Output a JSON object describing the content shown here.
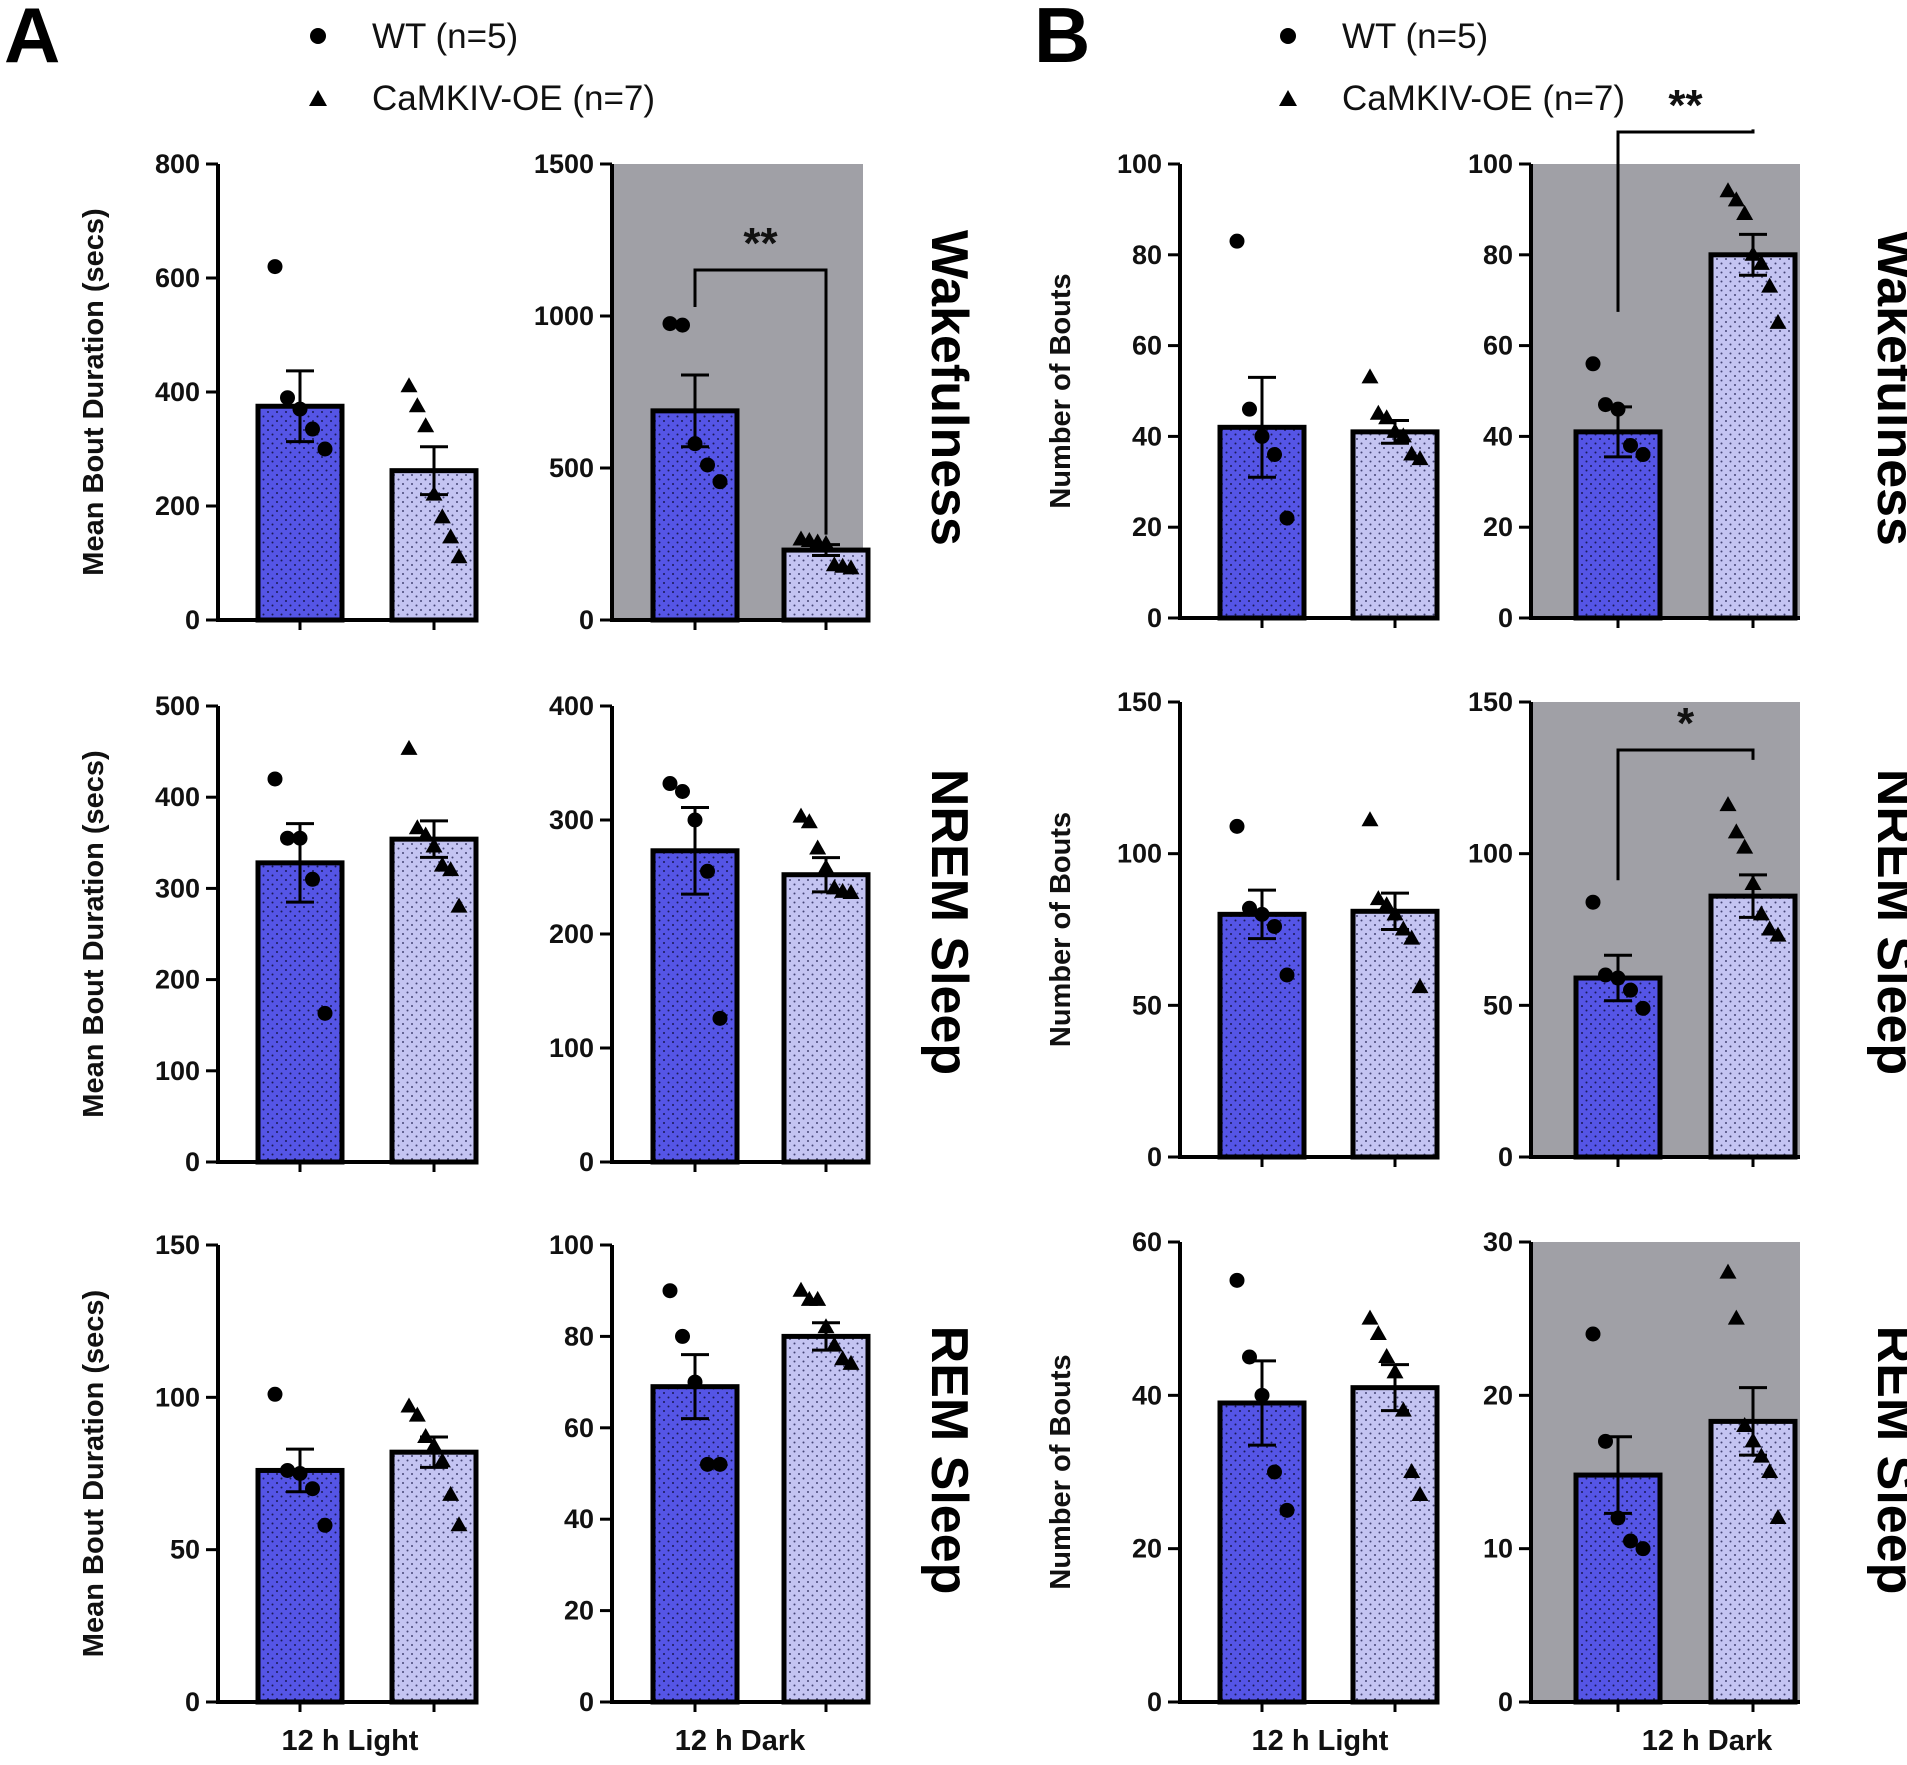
{
  "colors": {
    "wt": "#5555e6",
    "oe": "#c4c4f2",
    "dark_bg": "#a0a0a6",
    "ink": "#000000"
  },
  "panels": {
    "A": "A",
    "B": "B"
  },
  "legend": {
    "wt_label": "WT (n=5)",
    "oe_label": "CaMKIV-OE (n=7)"
  },
  "rows": {
    "wake": "Wakefulness",
    "nrem": "NREM Sleep",
    "rem": "REM Sleep"
  },
  "xcats": {
    "light": "12 h Light",
    "dark": "12 h Dark"
  },
  "chart_data": [
    {
      "id": "A-wake-light",
      "type": "bar",
      "panel": "A",
      "row": "Wakefulness",
      "condition": "12 h Light",
      "ylabel": "Mean Bout Duration (secs)",
      "ylim": [
        0,
        800
      ],
      "yticks": [
        0,
        200,
        400,
        600,
        800
      ],
      "dark": false,
      "series": [
        {
          "name": "WT (n=5)",
          "mean": 375,
          "sem": 62,
          "points": [
            620,
            390,
            370,
            335,
            300
          ]
        },
        {
          "name": "CaMKIV-OE (n=7)",
          "mean": 262,
          "sem": 42,
          "points": [
            410,
            375,
            340,
            220,
            180,
            145,
            110
          ]
        }
      ],
      "significance": null
    },
    {
      "id": "A-wake-dark",
      "type": "bar",
      "panel": "A",
      "row": "Wakefulness",
      "condition": "12 h Dark",
      "ylabel": "",
      "ylim": [
        0,
        1500
      ],
      "yticks": [
        0,
        500,
        1000,
        1500
      ],
      "dark": true,
      "series": [
        {
          "name": "WT (n=5)",
          "mean": 688,
          "sem": 118,
          "points": [
            975,
            970,
            580,
            510,
            455
          ]
        },
        {
          "name": "CaMKIV-OE (n=7)",
          "mean": 230,
          "sem": 18,
          "points": [
            265,
            260,
            255,
            250,
            180,
            175,
            170
          ]
        }
      ],
      "significance": "**"
    },
    {
      "id": "A-nrem-light",
      "type": "bar",
      "panel": "A",
      "row": "NREM Sleep",
      "condition": "12 h Light",
      "ylabel": "Mean Bout Duration (secs)",
      "ylim": [
        0,
        500
      ],
      "yticks": [
        0,
        100,
        200,
        300,
        400,
        500
      ],
      "dark": false,
      "series": [
        {
          "name": "WT (n=5)",
          "mean": 328,
          "sem": 43,
          "points": [
            420,
            355,
            355,
            310,
            163
          ]
        },
        {
          "name": "CaMKIV-OE (n=7)",
          "mean": 354,
          "sem": 20,
          "points": [
            453,
            366,
            358,
            346,
            325,
            320,
            280
          ]
        }
      ],
      "significance": null
    },
    {
      "id": "A-nrem-dark",
      "type": "bar",
      "panel": "A",
      "row": "NREM Sleep",
      "condition": "12 h Dark",
      "ylabel": "",
      "ylim": [
        0,
        400
      ],
      "yticks": [
        0,
        100,
        200,
        300,
        400
      ],
      "dark": false,
      "series": [
        {
          "name": "WT (n=5)",
          "mean": 273,
          "sem": 38,
          "points": [
            332,
            325,
            300,
            255,
            126
          ]
        },
        {
          "name": "CaMKIV-OE (n=7)",
          "mean": 252,
          "sem": 15,
          "points": [
            303,
            298,
            275,
            258,
            240,
            237,
            236
          ]
        }
      ],
      "significance": null
    },
    {
      "id": "A-rem-light",
      "type": "bar",
      "panel": "A",
      "row": "REM Sleep",
      "condition": "12 h Light",
      "ylabel": "Mean Bout Duration (secs)",
      "ylim": [
        0,
        150
      ],
      "yticks": [
        0,
        50,
        100,
        150
      ],
      "dark": false,
      "series": [
        {
          "name": "WT (n=5)",
          "mean": 76,
          "sem": 7,
          "points": [
            101,
            76,
            75,
            70,
            58
          ]
        },
        {
          "name": "CaMKIV-OE (n=7)",
          "mean": 82,
          "sem": 5,
          "points": [
            97,
            94,
            87,
            84,
            79,
            68,
            58
          ]
        }
      ],
      "significance": null
    },
    {
      "id": "A-rem-dark",
      "type": "bar",
      "panel": "A",
      "row": "REM Sleep",
      "condition": "12 h Dark",
      "ylabel": "",
      "ylim": [
        0,
        100
      ],
      "yticks": [
        0,
        20,
        40,
        60,
        80,
        100
      ],
      "dark": false,
      "series": [
        {
          "name": "WT (n=5)",
          "mean": 69,
          "sem": 7,
          "points": [
            90,
            80,
            70,
            52,
            52
          ]
        },
        {
          "name": "CaMKIV-OE (n=7)",
          "mean": 80,
          "sem": 3,
          "points": [
            90,
            88,
            88,
            82,
            78,
            75,
            74
          ]
        }
      ],
      "significance": null
    },
    {
      "id": "B-wake-light",
      "type": "bar",
      "panel": "B",
      "row": "Wakefulness",
      "condition": "12 h Light",
      "ylabel": "Number of Bouts",
      "ylim": [
        0,
        100
      ],
      "yticks": [
        0,
        20,
        40,
        60,
        80,
        100
      ],
      "dark": false,
      "series": [
        {
          "name": "WT (n=5)",
          "mean": 42,
          "sem": 11,
          "points": [
            83,
            46,
            40,
            36,
            22
          ]
        },
        {
          "name": "CaMKIV-OE (n=7)",
          "mean": 41,
          "sem": 2.5,
          "points": [
            53,
            45,
            44,
            41,
            40,
            36,
            35
          ]
        }
      ],
      "significance": null
    },
    {
      "id": "B-wake-dark",
      "type": "bar",
      "panel": "B",
      "row": "Wakefulness",
      "condition": "12 h Dark",
      "ylabel": "",
      "ylim": [
        0,
        100
      ],
      "yticks": [
        0,
        20,
        40,
        60,
        80,
        100
      ],
      "dark": true,
      "series": [
        {
          "name": "WT (n=5)",
          "mean": 41,
          "sem": 5.5,
          "points": [
            56,
            47,
            46,
            38,
            36
          ]
        },
        {
          "name": "CaMKIV-OE (n=7)",
          "mean": 80,
          "sem": 4.5,
          "points": [
            94,
            92,
            89,
            80,
            78,
            73,
            65
          ]
        }
      ],
      "significance": "**"
    },
    {
      "id": "B-nrem-light",
      "type": "bar",
      "panel": "B",
      "row": "NREM Sleep",
      "condition": "12 h Light",
      "ylabel": "Number of Bouts",
      "ylim": [
        0,
        150
      ],
      "yticks": [
        0,
        50,
        100,
        150
      ],
      "dark": false,
      "series": [
        {
          "name": "WT (n=5)",
          "mean": 80,
          "sem": 8,
          "points": [
            109,
            82,
            80,
            76,
            60
          ]
        },
        {
          "name": "CaMKIV-OE (n=7)",
          "mean": 81,
          "sem": 6,
          "points": [
            111,
            85,
            83,
            80,
            75,
            72,
            56
          ]
        }
      ],
      "significance": null
    },
    {
      "id": "B-nrem-dark",
      "type": "bar",
      "panel": "B",
      "row": "NREM Sleep",
      "condition": "12 h Dark",
      "ylabel": "",
      "ylim": [
        0,
        150
      ],
      "yticks": [
        0,
        50,
        100,
        150
      ],
      "dark": true,
      "series": [
        {
          "name": "WT (n=5)",
          "mean": 59,
          "sem": 7.5,
          "points": [
            84,
            60,
            59,
            55,
            49
          ]
        },
        {
          "name": "CaMKIV-OE (n=7)",
          "mean": 86,
          "sem": 7,
          "points": [
            116,
            107,
            102,
            90,
            80,
            75,
            73
          ]
        }
      ],
      "significance": "*"
    },
    {
      "id": "B-rem-light",
      "type": "bar",
      "panel": "B",
      "row": "REM Sleep",
      "condition": "12 h Light",
      "ylabel": "Number of Bouts",
      "ylim": [
        0,
        60
      ],
      "yticks": [
        0,
        20,
        40,
        60
      ],
      "dark": false,
      "series": [
        {
          "name": "WT (n=5)",
          "mean": 39,
          "sem": 5.5,
          "points": [
            55,
            45,
            40,
            30,
            25
          ]
        },
        {
          "name": "CaMKIV-OE (n=7)",
          "mean": 41,
          "sem": 3,
          "points": [
            50,
            48,
            45,
            43,
            38,
            30,
            27
          ]
        }
      ],
      "significance": null
    },
    {
      "id": "B-rem-dark",
      "type": "bar",
      "panel": "B",
      "row": "REM Sleep",
      "condition": "12 h Dark",
      "ylabel": "",
      "ylim": [
        0,
        30
      ],
      "yticks": [
        0,
        10,
        20,
        30
      ],
      "dark": true,
      "series": [
        {
          "name": "WT (n=5)",
          "mean": 14.8,
          "sem": 2.5,
          "points": [
            24,
            17,
            12,
            10.5,
            10
          ]
        },
        {
          "name": "CaMKIV-OE (n=7)",
          "mean": 18.3,
          "sem": 2.2,
          "points": [
            28,
            25,
            18,
            17,
            16,
            15,
            12
          ]
        }
      ],
      "significance": null
    }
  ]
}
